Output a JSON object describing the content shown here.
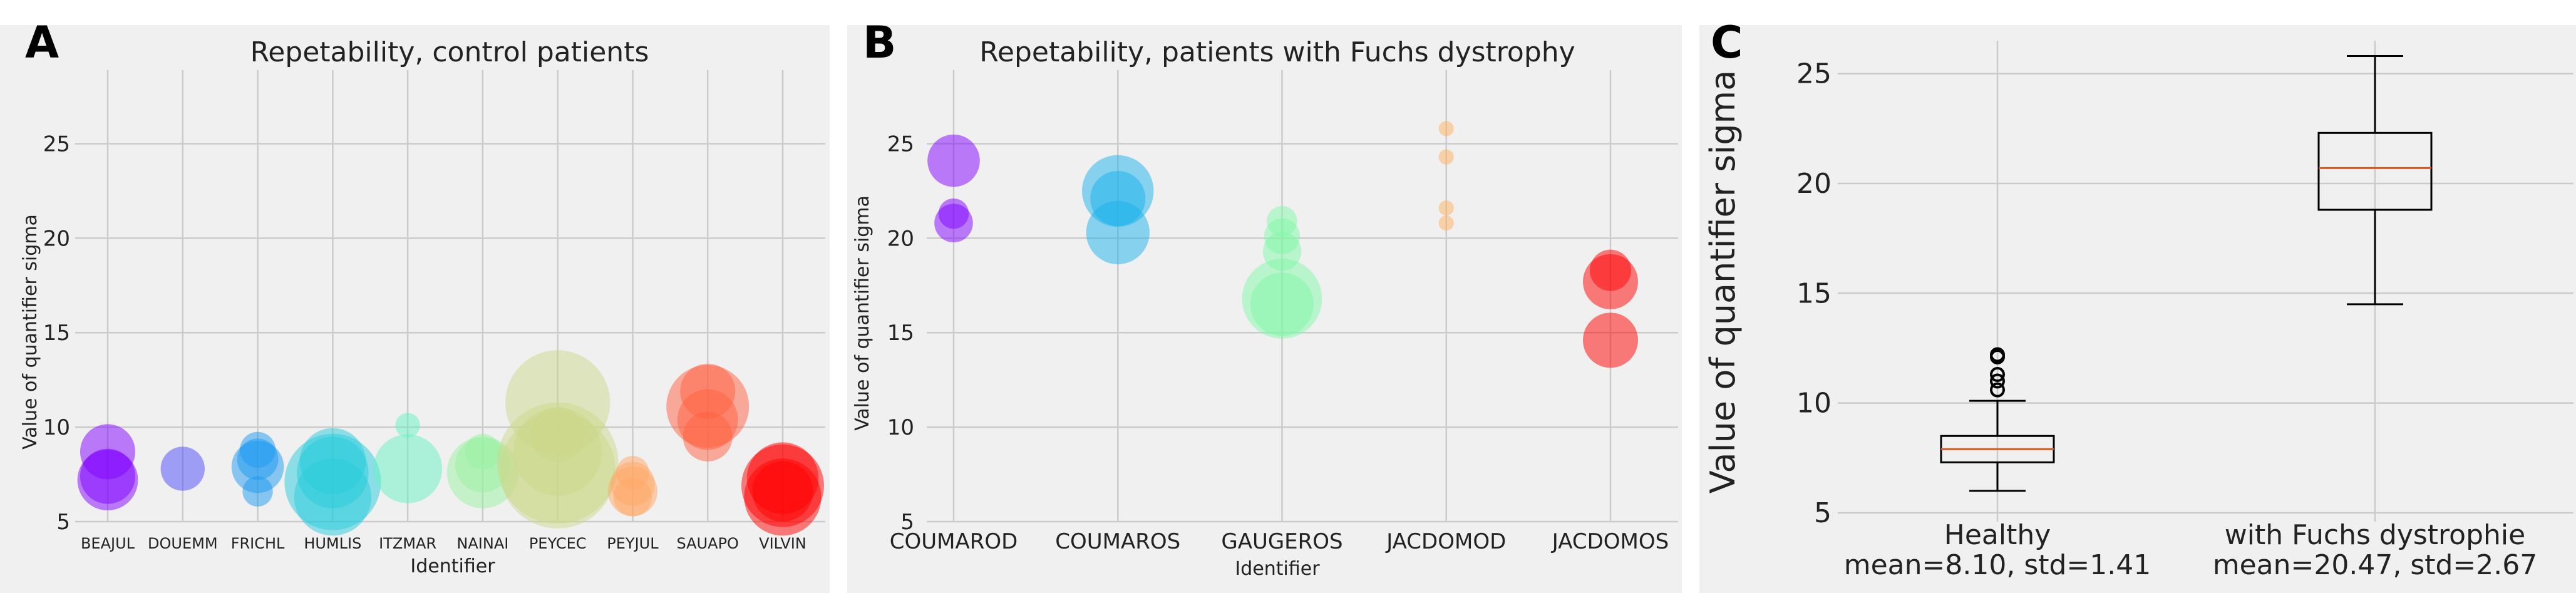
{
  "chart_data": [
    {
      "type": "scatter",
      "panel_label": "A",
      "title": "Repetability, control patients",
      "xlabel": "Identifier",
      "ylabel": "Value of quantifier sigma",
      "ylim": [
        5,
        28
      ],
      "yticks": [
        5,
        10,
        15,
        20,
        25
      ],
      "grid": true,
      "categories": [
        "BEAJUL",
        "DOUEMM",
        "FRICHL",
        "HUMLIS",
        "ITZMAR",
        "NAINAI",
        "PEYCEC",
        "PEYJUL",
        "SAUAPO",
        "VILVIN"
      ],
      "colors": [
        "#8000ff",
        "#4a4afc",
        "#1c9aef",
        "#28ccdc",
        "#66f2c2",
        "#9af2a2",
        "#ccd88a",
        "#ffa866",
        "#ff6040",
        "#ff0000"
      ],
      "points": [
        {
          "category": "BEAJUL",
          "y": 8.7,
          "size": 2
        },
        {
          "category": "BEAJUL",
          "y": 7.4,
          "size": 2
        },
        {
          "category": "BEAJUL",
          "y": 7.2,
          "size": 2.2
        },
        {
          "category": "DOUEMM",
          "y": 7.8,
          "size": 1.6
        },
        {
          "category": "FRICHL",
          "y": 8.8,
          "size": 1.3
        },
        {
          "category": "FRICHL",
          "y": 8.3,
          "size": 1.5
        },
        {
          "category": "FRICHL",
          "y": 7.9,
          "size": 1.9
        },
        {
          "category": "FRICHL",
          "y": 6.6,
          "size": 1.1
        },
        {
          "category": "HUMLIS",
          "y": 8.2,
          "size": 2.4
        },
        {
          "category": "HUMLIS",
          "y": 7.6,
          "size": 2.6
        },
        {
          "category": "HUMLIS",
          "y": 7.1,
          "size": 3.5
        },
        {
          "category": "HUMLIS",
          "y": 6.3,
          "size": 2.8
        },
        {
          "category": "ITZMAR",
          "y": 10.1,
          "size": 0.9
        },
        {
          "category": "ITZMAR",
          "y": 7.8,
          "size": 2.5
        },
        {
          "category": "NAINAI",
          "y": 8.7,
          "size": 1.3
        },
        {
          "category": "NAINAI",
          "y": 8.0,
          "size": 2
        },
        {
          "category": "NAINAI",
          "y": 7.6,
          "size": 2.6
        },
        {
          "category": "PEYCEC",
          "y": 11.3,
          "size": 3.8
        },
        {
          "category": "PEYCEC",
          "y": 9.6,
          "size": 2
        },
        {
          "category": "PEYCEC",
          "y": 8.7,
          "size": 3.2
        },
        {
          "category": "PEYCEC",
          "y": 8.1,
          "size": 4.4
        },
        {
          "category": "PEYCEC",
          "y": 7.7,
          "size": 4.2
        },
        {
          "category": "PEYJUL",
          "y": 7.6,
          "size": 1.2
        },
        {
          "category": "PEYJUL",
          "y": 7.0,
          "size": 1.6
        },
        {
          "category": "PEYJUL",
          "y": 6.6,
          "size": 1.8
        },
        {
          "category": "PEYJUL",
          "y": 6.3,
          "size": 1.4
        },
        {
          "category": "SAUAPO",
          "y": 11.9,
          "size": 2
        },
        {
          "category": "SAUAPO",
          "y": 11.1,
          "size": 3
        },
        {
          "category": "SAUAPO",
          "y": 10.4,
          "size": 2.2
        },
        {
          "category": "SAUAPO",
          "y": 9.5,
          "size": 1.8
        },
        {
          "category": "VILVIN",
          "y": 7.3,
          "size": 2.6
        },
        {
          "category": "VILVIN",
          "y": 6.9,
          "size": 3
        },
        {
          "category": "VILVIN",
          "y": 6.6,
          "size": 2.2
        },
        {
          "category": "VILVIN",
          "y": 6.3,
          "size": 2.8
        }
      ]
    },
    {
      "type": "scatter",
      "panel_label": "B",
      "title": "Repetability, patients with Fuchs dystrophy",
      "xlabel": "Identifier",
      "ylabel": "Value of quantifier sigma",
      "ylim": [
        5,
        28
      ],
      "yticks": [
        5,
        10,
        15,
        20,
        25
      ],
      "grid": true,
      "categories": [
        "COUMAROD",
        "COUMAROS",
        "GAUGEROS",
        "JACDOMOD",
        "JACDOMOS"
      ],
      "colors": [
        "#8000ff",
        "#1ab2ec",
        "#80f7a8",
        "#ffb060",
        "#ff0000"
      ],
      "points": [
        {
          "category": "COUMAROD",
          "y": 24.1,
          "size": 1.9
        },
        {
          "category": "COUMAROD",
          "y": 21.3,
          "size": 1.1
        },
        {
          "category": "COUMAROD",
          "y": 20.8,
          "size": 1.4
        },
        {
          "category": "COUMAROS",
          "y": 22.5,
          "size": 2.6
        },
        {
          "category": "COUMAROS",
          "y": 22.1,
          "size": 2
        },
        {
          "category": "COUMAROS",
          "y": 20.3,
          "size": 2.3
        },
        {
          "category": "GAUGEROS",
          "y": 20.9,
          "size": 1.1
        },
        {
          "category": "GAUGEROS",
          "y": 20.1,
          "size": 1.3
        },
        {
          "category": "GAUGEROS",
          "y": 19.3,
          "size": 1.4
        },
        {
          "category": "GAUGEROS",
          "y": 16.8,
          "size": 2.9
        },
        {
          "category": "GAUGEROS",
          "y": 16.5,
          "size": 2.3
        },
        {
          "category": "JACDOMOD",
          "y": 25.8,
          "size": 0.55
        },
        {
          "category": "JACDOMOD",
          "y": 24.3,
          "size": 0.55
        },
        {
          "category": "JACDOMOD",
          "y": 21.6,
          "size": 0.55
        },
        {
          "category": "JACDOMOD",
          "y": 20.8,
          "size": 0.55
        },
        {
          "category": "JACDOMOS",
          "y": 18.3,
          "size": 1.5
        },
        {
          "category": "JACDOMOS",
          "y": 17.7,
          "size": 2
        },
        {
          "category": "JACDOMOS",
          "y": 14.6,
          "size": 2
        }
      ]
    },
    {
      "type": "boxplot",
      "panel_label": "C",
      "title": "",
      "xlabel": "",
      "ylabel": "Value of quantifier sigma",
      "ylim": [
        4.6,
        26.5
      ],
      "yticks": [
        5,
        10,
        15,
        20,
        25
      ],
      "grid": true,
      "categories": [
        "Healthy",
        "with Fuchs dystrophie"
      ],
      "subtitles": [
        "mean=8.10, std=1.41",
        "mean=20.47, std=2.67"
      ],
      "median_color": "#e2531f",
      "boxes": [
        {
          "name": "Healthy",
          "whisker_low": 6.0,
          "q1": 7.3,
          "median": 7.9,
          "q3": 8.5,
          "whisker_high": 10.1,
          "outliers": [
            10.6,
            11.0,
            11.3,
            12.1,
            12.2
          ]
        },
        {
          "name": "with Fuchs dystrophie",
          "whisker_low": 14.5,
          "q1": 18.8,
          "median": 20.7,
          "q3": 22.3,
          "whisker_high": 25.8,
          "outliers": []
        }
      ]
    }
  ]
}
